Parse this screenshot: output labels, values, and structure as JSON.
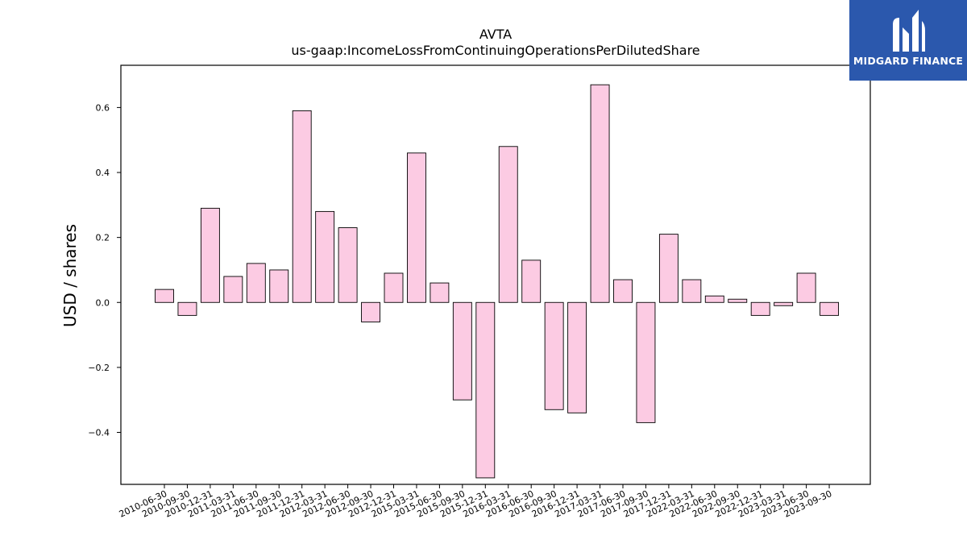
{
  "brand": {
    "name": "MIDGARD FINANCE",
    "background": "#2b58ad",
    "mark_icon": "midgard-m-logo-icon"
  },
  "chart_data": {
    "type": "bar",
    "title": "AVTA",
    "subtitle": "us-gaap:IncomeLossFromContinuingOperationsPerDilutedShare",
    "xlabel": "",
    "ylabel": "USD / shares",
    "ylim": [
      -0.56,
      0.73
    ],
    "yticks": [
      -0.4,
      -0.2,
      0.0,
      0.2,
      0.4,
      0.6
    ],
    "ytick_labels": [
      "−0.4",
      "−0.2",
      "0.0",
      "0.2",
      "0.4",
      "0.6"
    ],
    "bar_color": "#fccbe3",
    "edge_color": "#000000",
    "grid": false,
    "categories": [
      "2010-06-30",
      "2010-09-30",
      "2010-12-31",
      "2011-03-31",
      "2011-06-30",
      "2011-09-30",
      "2011-12-31",
      "2012-03-31",
      "2012-06-30",
      "2012-09-30",
      "2012-12-31",
      "2015-03-31",
      "2015-06-30",
      "2015-09-30",
      "2015-12-31",
      "2016-03-31",
      "2016-06-30",
      "2016-09-30",
      "2016-12-31",
      "2017-03-31",
      "2017-06-30",
      "2017-09-30",
      "2017-12-31",
      "2022-03-31",
      "2022-06-30",
      "2022-09-30",
      "2022-12-31",
      "2023-03-31",
      "2023-06-30",
      "2023-09-30"
    ],
    "values": [
      0.04,
      -0.04,
      0.29,
      0.08,
      0.12,
      0.1,
      0.59,
      0.28,
      0.23,
      -0.06,
      0.09,
      0.46,
      0.06,
      -0.3,
      -0.54,
      0.48,
      0.13,
      -0.33,
      -0.34,
      0.67,
      0.07,
      -0.37,
      0.21,
      0.07,
      0.02,
      0.01,
      -0.04,
      -0.01,
      0.09,
      -0.04
    ]
  }
}
